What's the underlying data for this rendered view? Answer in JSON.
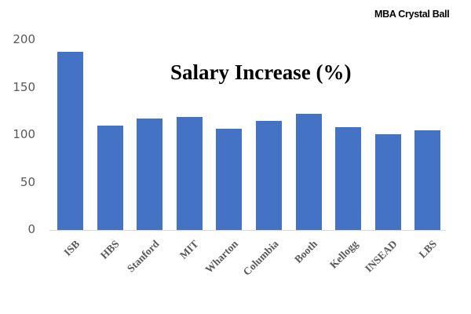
{
  "brand": "MBA Crystal Ball",
  "chart_data": {
    "type": "bar",
    "title": "Salary Increase (%)",
    "xlabel": "",
    "ylabel": "",
    "ylim": [
      0,
      200
    ],
    "yticks": [
      "0",
      "50",
      "100",
      "150",
      "200"
    ],
    "grid": false,
    "legend": null,
    "color": "#4472C4",
    "categories": [
      "ISB",
      "HBS",
      "Stanford",
      "MIT",
      "Wharton",
      "Columbia",
      "Booth",
      "Kellogg",
      "INSEAD",
      "LBS"
    ],
    "values": [
      188,
      110,
      117,
      119,
      107,
      115,
      122,
      108,
      101,
      105
    ]
  }
}
